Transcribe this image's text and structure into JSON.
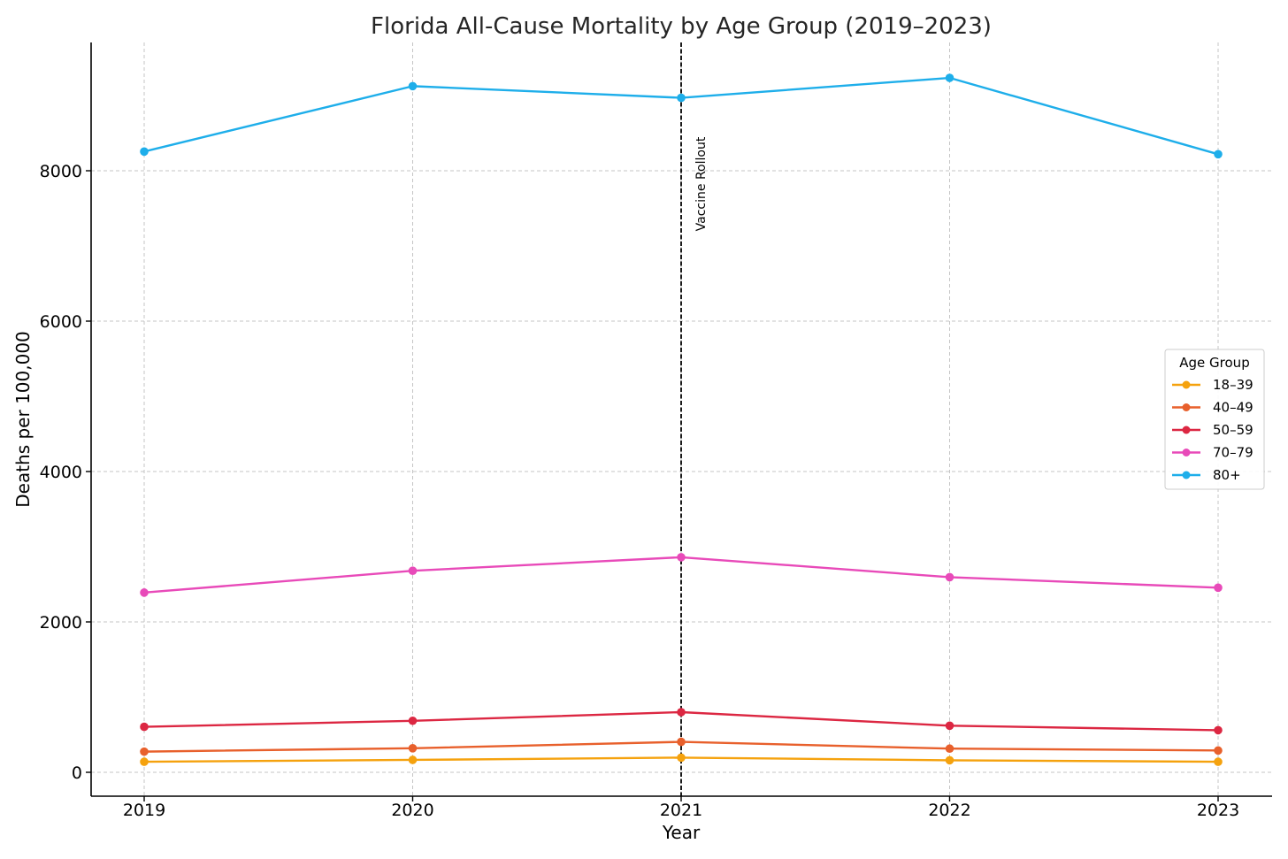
{
  "chart_data": {
    "type": "line",
    "title": "Florida All-Cause Mortality by Age Group (2019–2023)",
    "xlabel": "Year",
    "ylabel": "Deaths per 100,000",
    "x": [
      2019,
      2020,
      2021,
      2022,
      2023
    ],
    "x_tick_labels": [
      "2019",
      "2020",
      "2021",
      "2022",
      "2023"
    ],
    "xlim": [
      2018.8,
      2023.2
    ],
    "ylim": [
      -300,
      9700
    ],
    "y_ticks": [
      0,
      2000,
      4000,
      6000,
      8000
    ],
    "y_tick_labels": [
      "0",
      "2000",
      "4000",
      "6000",
      "8000"
    ],
    "grid": true,
    "legend": {
      "title": "Age Group",
      "placement": "center-right"
    },
    "series": [
      {
        "name": "18–39",
        "color": "#f5a20e",
        "values": [
          140,
          165,
          195,
          160,
          140
        ]
      },
      {
        "name": "40–49",
        "color": "#e8602c",
        "values": [
          275,
          320,
          405,
          315,
          290
        ]
      },
      {
        "name": "50–59",
        "color": "#dc2742",
        "values": [
          605,
          685,
          800,
          620,
          560
        ]
      },
      {
        "name": "70–79",
        "color": "#e84ab9",
        "values": [
          2390,
          2680,
          2860,
          2595,
          2455
        ]
      },
      {
        "name": "80+",
        "color": "#1eaeea",
        "values": [
          8255,
          9125,
          8970,
          9235,
          8220
        ]
      }
    ],
    "annotations": [
      {
        "type": "vline",
        "x": 2021,
        "label": "Vaccine Rollout",
        "style": "dashed",
        "color": "#000000"
      }
    ]
  }
}
